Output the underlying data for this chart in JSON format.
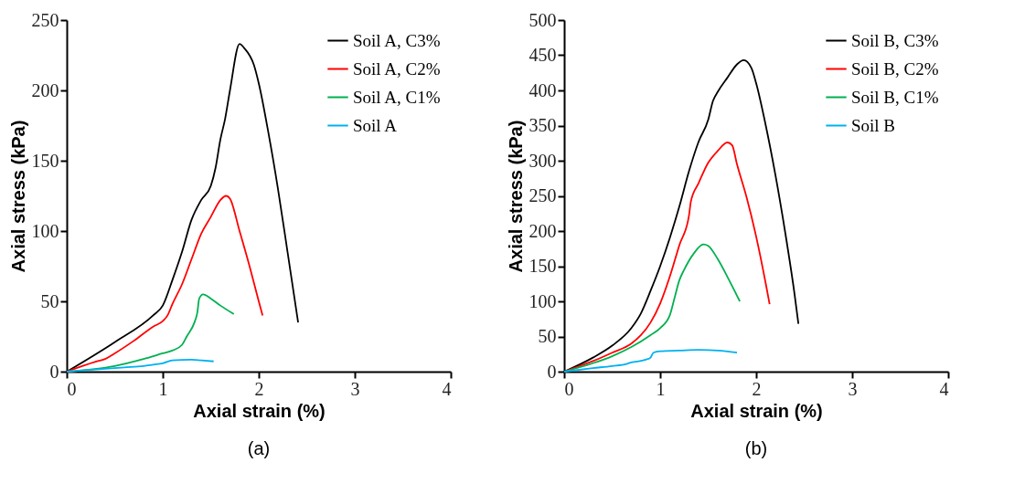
{
  "chart_data": [
    {
      "type": "line",
      "xlabel": "Axial strain (%)",
      "ylabel": "Axial stress (kPa)",
      "xlim": [
        0,
        4
      ],
      "xticks": [
        0,
        1,
        2,
        3,
        4
      ],
      "ylim": [
        0,
        250
      ],
      "yticks": [
        0,
        50,
        100,
        150,
        200,
        250
      ],
      "grid": false,
      "legend": "top right",
      "annotations": [
        "(a)"
      ],
      "series": [
        {
          "name": "Soil A, C3%",
          "color": "#000000",
          "x": [
            0,
            0.5,
            0.9,
            1.0,
            1.1,
            1.2,
            1.3,
            1.4,
            1.5,
            1.55,
            1.6,
            1.65,
            1.7,
            1.8,
            1.85,
            1.95,
            2.0,
            2.1,
            2.2,
            2.3,
            2.41
          ],
          "values": [
            0,
            21,
            40,
            47,
            65,
            85,
            108,
            122,
            132,
            145,
            165,
            180,
            200,
            233,
            230,
            218,
            205,
            170,
            130,
            85,
            35
          ]
        },
        {
          "name": "Soil A, C2%",
          "color": "#ff0000",
          "x": [
            0,
            0.3,
            0.4,
            0.5,
            0.7,
            0.9,
            1.0,
            1.05,
            1.1,
            1.2,
            1.3,
            1.4,
            1.5,
            1.6,
            1.66,
            1.7,
            1.8,
            1.9,
            2.0,
            2.04
          ],
          "values": [
            0,
            7,
            9,
            13,
            22,
            32,
            36,
            40,
            48,
            62,
            80,
            98,
            110,
            122,
            125,
            123,
            100,
            76,
            50,
            40
          ]
        },
        {
          "name": "Soil A, C1%",
          "color": "#00b050",
          "x": [
            0,
            0.5,
            0.8,
            1.0,
            1.1,
            1.2,
            1.25,
            1.33,
            1.36,
            1.38,
            1.42,
            1.5,
            1.6,
            1.74
          ],
          "values": [
            0,
            4,
            9,
            13,
            15,
            19,
            25,
            35,
            42,
            52,
            55,
            52,
            47,
            41
          ]
        },
        {
          "name": "Soil A",
          "color": "#00b0f0",
          "x": [
            0,
            0.4,
            0.6,
            0.8,
            0.9,
            1.0,
            1.1,
            1.3,
            1.4,
            1.53
          ],
          "values": [
            0,
            2,
            3,
            4,
            5,
            6,
            8,
            8.5,
            8,
            7.3
          ]
        }
      ]
    },
    {
      "type": "line",
      "xlabel": "Axial strain (%)",
      "ylabel": "Axial stress (kPa)",
      "xlim": [
        0,
        4
      ],
      "xticks": [
        0,
        1,
        2,
        3,
        4
      ],
      "ylim": [
        0,
        500
      ],
      "yticks": [
        0,
        50,
        100,
        150,
        200,
        250,
        300,
        350,
        400,
        450,
        500
      ],
      "grid": false,
      "legend": "top right",
      "annotations": [
        "(b)"
      ],
      "series": [
        {
          "name": "Soil B, C3%",
          "color": "#000000",
          "x": [
            0,
            0.3,
            0.5,
            0.7,
            0.8,
            0.9,
            1.0,
            1.1,
            1.2,
            1.3,
            1.4,
            1.5,
            1.55,
            1.6,
            1.7,
            1.8,
            1.87,
            1.95,
            2.0,
            2.1,
            2.2,
            2.3,
            2.4,
            2.44
          ],
          "values": [
            0,
            20,
            37,
            62,
            83,
            115,
            150,
            190,
            235,
            285,
            327,
            358,
            385,
            398,
            418,
            437,
            443,
            432,
            410,
            350,
            280,
            200,
            110,
            68
          ]
        },
        {
          "name": "Soil B, C2%",
          "color": "#ff0000",
          "x": [
            0,
            0.3,
            0.5,
            0.7,
            0.8,
            0.9,
            1.0,
            1.1,
            1.2,
            1.3,
            1.32,
            1.4,
            1.5,
            1.6,
            1.7,
            1.75,
            1.8,
            1.9,
            2.0,
            2.1,
            2.14
          ],
          "values": [
            0,
            15,
            27,
            40,
            52,
            70,
            97,
            135,
            180,
            222,
            242,
            268,
            297,
            314,
            326,
            322,
            295,
            248,
            192,
            125,
            96
          ]
        },
        {
          "name": "Soil B, C1%",
          "color": "#00b050",
          "x": [
            0,
            0.3,
            0.5,
            0.7,
            0.9,
            1.0,
            1.1,
            1.15,
            1.2,
            1.25,
            1.35,
            1.45,
            1.5,
            1.6,
            1.7,
            1.8,
            1.83
          ],
          "values": [
            0,
            12,
            22,
            35,
            52,
            62,
            80,
            105,
            130,
            145,
            168,
            181,
            179,
            160,
            135,
            108,
            100
          ]
        },
        {
          "name": "Soil B",
          "color": "#00b0f0",
          "x": [
            0,
            0.3,
            0.5,
            0.65,
            0.7,
            0.85,
            0.9,
            0.93,
            1.0,
            1.2,
            1.4,
            1.6,
            1.8
          ],
          "values": [
            0,
            5,
            8,
            11,
            13,
            17,
            20,
            27,
            29,
            30,
            31,
            30,
            27
          ]
        }
      ]
    }
  ]
}
